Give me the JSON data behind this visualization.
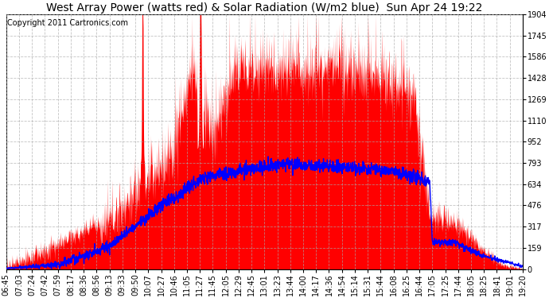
{
  "title": "West Array Power (watts red) & Solar Radiation (W/m2 blue)  Sun Apr 24 19:22",
  "copyright": "Copyright 2011 Cartronics.com",
  "y_ticks": [
    0.0,
    158.6,
    317.2,
    475.9,
    634.5,
    793.1,
    951.7,
    1110.4,
    1269.0,
    1427.6,
    1586.2,
    1744.8,
    1903.5
  ],
  "ylim": [
    0,
    1903.5
  ],
  "x_labels": [
    "06:45",
    "07:03",
    "07:24",
    "07:42",
    "07:59",
    "08:17",
    "08:36",
    "08:56",
    "09:13",
    "09:33",
    "09:50",
    "10:07",
    "10:27",
    "10:46",
    "11:05",
    "11:27",
    "11:45",
    "12:05",
    "12:29",
    "12:45",
    "13:01",
    "13:23",
    "13:44",
    "14:00",
    "14:17",
    "14:36",
    "14:54",
    "15:14",
    "15:31",
    "15:44",
    "16:08",
    "16:25",
    "16:44",
    "17:05",
    "17:25",
    "17:44",
    "18:05",
    "18:25",
    "18:41",
    "19:01",
    "19:20"
  ],
  "bg_color": "#ffffff",
  "plot_bg_color": "#ffffff",
  "grid_color": "#aaaaaa",
  "red_color": "#ff0000",
  "blue_color": "#0000ff",
  "title_fontsize": 10,
  "tick_fontsize": 7,
  "copyright_fontsize": 7
}
